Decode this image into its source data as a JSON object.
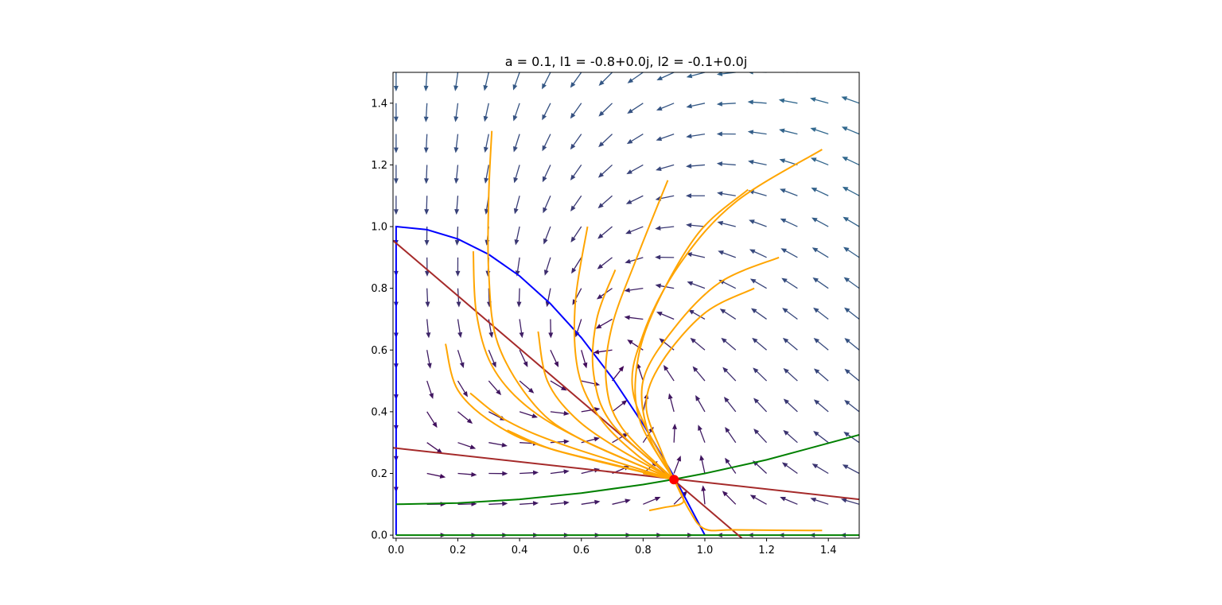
{
  "chart_data": {
    "type": "vector-field",
    "title": "a = 0.1,    l1 = -0.8+0.0j,    l2 = -0.1+0.0j",
    "xlabel": "",
    "ylabel": "",
    "xlim": [
      -0.01,
      1.5
    ],
    "ylim": [
      -0.01,
      1.5
    ],
    "xticks": [
      "0.0",
      "0.2",
      "0.4",
      "0.6",
      "0.8",
      "1.0",
      "1.2",
      "1.4"
    ],
    "yticks": [
      "0.0",
      "0.2",
      "0.4",
      "0.6",
      "0.8",
      "1.0",
      "1.2",
      "1.4"
    ],
    "parameters": {
      "a": 0.1
    },
    "eigenvalues": [
      "-0.8+0.0j",
      "-0.1+0.0j"
    ],
    "equilibrium": {
      "x": 0.9,
      "y": 0.18
    },
    "colors": {
      "x_nullcline": "#0000ff",
      "y_nullcline": "#008000",
      "eigenvector_lines": "#a52a2a",
      "trajectories": "#ffa500",
      "equilibrium_point": "#ff0000",
      "arrows_slow": "#440154",
      "arrows_fast": "#31688e"
    },
    "arrow_grid": {
      "x_min": 0.0,
      "x_max": 1.5,
      "y_min": 0.0,
      "y_max": 1.5,
      "step": 0.1
    },
    "series": [
      {
        "role": "x-nullcline",
        "color": "#0000ff",
        "points": [
          [
            0,
            0
          ],
          [
            0,
            1.0
          ],
          [
            0.1,
            0.99
          ],
          [
            0.2,
            0.96
          ],
          [
            0.3,
            0.91
          ],
          [
            0.4,
            0.84
          ],
          [
            0.5,
            0.75
          ],
          [
            0.6,
            0.64
          ],
          [
            0.7,
            0.51
          ],
          [
            0.8,
            0.36
          ],
          [
            0.9,
            0.19
          ],
          [
            1.0,
            0.0
          ]
        ]
      },
      {
        "role": "y-nullcline",
        "color": "#008000",
        "points": [
          [
            0,
            0.1
          ],
          [
            0.2,
            0.104
          ],
          [
            0.4,
            0.116
          ],
          [
            0.6,
            0.136
          ],
          [
            0.8,
            0.164
          ],
          [
            0.9,
            0.181
          ],
          [
            1.0,
            0.2
          ],
          [
            1.2,
            0.244
          ],
          [
            1.5,
            0.325
          ]
        ]
      },
      {
        "role": "y-nullcline-axis",
        "color": "#008000",
        "points": [
          [
            0,
            0.0
          ],
          [
            1.5,
            0.0
          ]
        ]
      },
      {
        "role": "eigen-line-1",
        "color": "#a52a2a",
        "points": [
          [
            -0.01,
            0.955
          ],
          [
            1.12,
            -0.01
          ]
        ]
      },
      {
        "role": "eigen-line-2",
        "color": "#a52a2a",
        "points": [
          [
            -0.01,
            0.283
          ],
          [
            1.5,
            0.116
          ]
        ]
      }
    ],
    "trajectories": [
      [
        [
          0.31,
          1.31
        ],
        [
          0.3,
          1.1
        ],
        [
          0.3,
          0.85
        ],
        [
          0.33,
          0.62
        ],
        [
          0.45,
          0.42
        ],
        [
          0.6,
          0.31
        ],
        [
          0.9,
          0.18
        ]
      ],
      [
        [
          0.25,
          0.92
        ],
        [
          0.26,
          0.72
        ],
        [
          0.31,
          0.55
        ],
        [
          0.42,
          0.42
        ],
        [
          0.6,
          0.31
        ],
        [
          0.9,
          0.18
        ]
      ],
      [
        [
          0.16,
          0.62
        ],
        [
          0.2,
          0.47
        ],
        [
          0.32,
          0.36
        ],
        [
          0.5,
          0.28
        ],
        [
          0.9,
          0.18
        ]
      ],
      [
        [
          0.24,
          0.46
        ],
        [
          0.36,
          0.37
        ],
        [
          0.55,
          0.29
        ],
        [
          0.9,
          0.18
        ]
      ],
      [
        [
          0.36,
          0.34
        ],
        [
          0.5,
          0.28
        ],
        [
          0.7,
          0.23
        ],
        [
          0.9,
          0.18
        ]
      ],
      [
        [
          0.46,
          0.66
        ],
        [
          0.49,
          0.5
        ],
        [
          0.58,
          0.38
        ],
        [
          0.72,
          0.28
        ],
        [
          0.9,
          0.18
        ]
      ],
      [
        [
          0.62,
          1.0
        ],
        [
          0.58,
          0.75
        ],
        [
          0.59,
          0.53
        ],
        [
          0.66,
          0.38
        ],
        [
          0.78,
          0.26
        ],
        [
          0.9,
          0.18
        ]
      ],
      [
        [
          0.71,
          0.86
        ],
        [
          0.65,
          0.7
        ],
        [
          0.64,
          0.52
        ],
        [
          0.7,
          0.36
        ],
        [
          0.9,
          0.18
        ]
      ],
      [
        [
          0.88,
          1.15
        ],
        [
          0.78,
          0.9
        ],
        [
          0.7,
          0.68
        ],
        [
          0.68,
          0.5
        ],
        [
          0.73,
          0.35
        ],
        [
          0.9,
          0.18
        ]
      ],
      [
        [
          1.38,
          1.25
        ],
        [
          1.1,
          1.08
        ],
        [
          0.92,
          0.88
        ],
        [
          0.8,
          0.65
        ],
        [
          0.77,
          0.45
        ],
        [
          0.9,
          0.18
        ]
      ],
      [
        [
          1.14,
          1.12
        ],
        [
          0.98,
          0.98
        ],
        [
          0.84,
          0.74
        ],
        [
          0.78,
          0.55
        ],
        [
          0.79,
          0.37
        ],
        [
          0.9,
          0.18
        ]
      ],
      [
        [
          1.24,
          0.9
        ],
        [
          1.05,
          0.82
        ],
        [
          0.9,
          0.67
        ],
        [
          0.8,
          0.5
        ],
        [
          0.82,
          0.32
        ],
        [
          0.9,
          0.18
        ]
      ],
      [
        [
          1.16,
          0.8
        ],
        [
          1.0,
          0.72
        ],
        [
          0.86,
          0.56
        ],
        [
          0.81,
          0.42
        ],
        [
          0.86,
          0.27
        ],
        [
          0.9,
          0.18
        ]
      ],
      [
        [
          0.82,
          0.08
        ],
        [
          0.87,
          0.09
        ],
        [
          0.92,
          0.1
        ],
        [
          0.93,
          0.12
        ],
        [
          0.9,
          0.18
        ]
      ],
      [
        [
          1.38,
          0.015
        ],
        [
          1.1,
          0.017
        ],
        [
          1.0,
          0.02
        ],
        [
          0.95,
          0.08
        ],
        [
          0.9,
          0.18
        ]
      ],
      [
        [
          0.8,
          0.2
        ],
        [
          0.85,
          0.19
        ],
        [
          0.9,
          0.18
        ]
      ]
    ]
  }
}
